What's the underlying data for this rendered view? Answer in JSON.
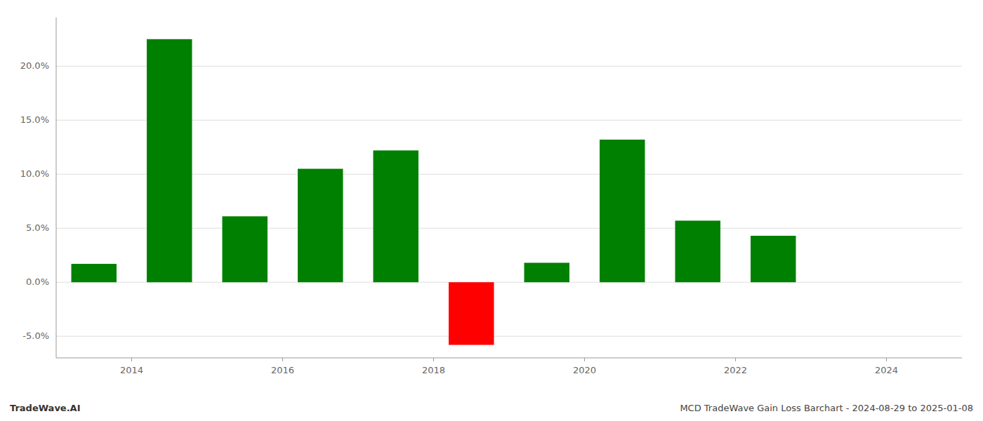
{
  "chart_data": {
    "type": "bar",
    "x": [
      2013.5,
      2014.5,
      2015.5,
      2016.5,
      2017.5,
      2018.5,
      2019.5,
      2020.5,
      2021.5,
      2022.5
    ],
    "values": [
      1.7,
      22.5,
      6.1,
      10.5,
      12.2,
      -5.8,
      1.8,
      13.2,
      5.7,
      4.3
    ],
    "colors": [
      "#008000",
      "#008000",
      "#008000",
      "#008000",
      "#008000",
      "#ff0000",
      "#008000",
      "#008000",
      "#008000",
      "#008000"
    ],
    "xlim": [
      2013.0,
      2025.0
    ],
    "xticks": [
      2014,
      2016,
      2018,
      2020,
      2022,
      2024
    ],
    "ylim": [
      -7.0,
      24.5
    ],
    "yticks": [
      {
        "value": -5.0,
        "label": "-5.0%"
      },
      {
        "value": 0.0,
        "label": "0.0%"
      },
      {
        "value": 5.0,
        "label": "5.0%"
      },
      {
        "value": 10.0,
        "label": "10.0%"
      },
      {
        "value": 15.0,
        "label": "15.0%"
      },
      {
        "value": 20.0,
        "label": "20.0%"
      }
    ],
    "grid": true,
    "annotations": [
      {
        "text": "TradeWave.AI"
      },
      {
        "text": "MCD TradeWave Gain Loss Barchart - 2024-08-29 to 2025-01-08"
      }
    ]
  }
}
